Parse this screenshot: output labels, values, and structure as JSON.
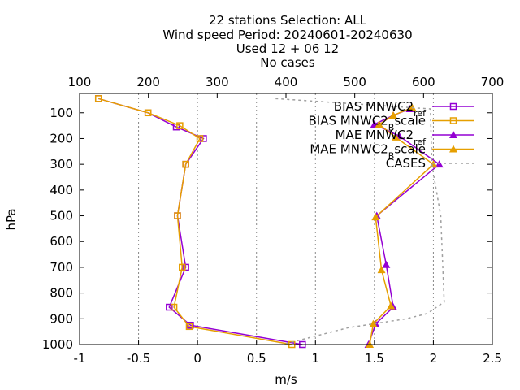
{
  "chart_data": {
    "type": "line",
    "title_lines": [
      "22 stations Selection: ALL",
      "Wind speed  Period: 20240601-20240630",
      "Used 12 + 06 12",
      "No cases"
    ],
    "xlabel": "m/s",
    "ylabel": "hPa",
    "xlim": [
      -1,
      2.5
    ],
    "x_ticks": [
      "-1",
      "-0.5",
      "0",
      "0.5",
      "1",
      "1.5",
      "2",
      "2.5"
    ],
    "x_tick_values": [
      -1,
      -0.5,
      0,
      0.5,
      1,
      1.5,
      2,
      2.5
    ],
    "x2lim": [
      100,
      700
    ],
    "x2_ticks": [
      "100",
      "200",
      "300",
      "400",
      "500",
      "600",
      "700"
    ],
    "x2_tick_values": [
      100,
      200,
      300,
      400,
      500,
      600,
      700
    ],
    "ylim": [
      1000,
      25
    ],
    "y_ticks": [
      "100",
      "200",
      "300",
      "400",
      "500",
      "600",
      "700",
      "800",
      "900",
      "1000"
    ],
    "y_tick_values": [
      100,
      200,
      300,
      400,
      500,
      600,
      700,
      800,
      900,
      1000
    ],
    "grid": "vertical",
    "legend_position": "top-right",
    "series": [
      {
        "name": "BIAS MNWC2_ref",
        "legend_parts": [
          "BIAS MNWC2",
          "ref"
        ],
        "color": "#9400d3",
        "marker": "square",
        "axis": "x1",
        "points": [
          [
            -0.84,
            45
          ],
          [
            -0.42,
            100
          ],
          [
            -0.18,
            155
          ],
          [
            0.05,
            200
          ],
          [
            -0.1,
            300
          ],
          [
            -0.17,
            500
          ],
          [
            -0.1,
            700
          ],
          [
            -0.24,
            855
          ],
          [
            -0.06,
            925
          ],
          [
            0.89,
            1000
          ]
        ]
      },
      {
        "name": "BIAS MNWC2_Bscale",
        "legend_parts": [
          "BIAS MNWC2",
          "B",
          "scale"
        ],
        "color": "#e69f00",
        "marker": "square",
        "axis": "x1",
        "points": [
          [
            -0.84,
            45
          ],
          [
            -0.42,
            100
          ],
          [
            -0.15,
            150
          ],
          [
            0.02,
            200
          ],
          [
            -0.1,
            300
          ],
          [
            -0.17,
            500
          ],
          [
            -0.13,
            700
          ],
          [
            -0.2,
            855
          ],
          [
            -0.07,
            930
          ],
          [
            0.8,
            1000
          ]
        ]
      },
      {
        "name": "MAE MNWC2_ref",
        "legend_parts": [
          "MAE MNWC2",
          "ref"
        ],
        "color": "#9400d3",
        "marker": "triangle",
        "axis": "x1",
        "points": [
          [
            1.8,
            85
          ],
          [
            1.66,
            110
          ],
          [
            1.5,
            145
          ],
          [
            1.71,
            190
          ],
          [
            2.05,
            300
          ],
          [
            1.52,
            500
          ],
          [
            1.6,
            690
          ],
          [
            1.66,
            855
          ],
          [
            1.51,
            920
          ],
          [
            1.45,
            1000
          ]
        ]
      },
      {
        "name": "MAE MNWC2_Bscale",
        "legend_parts": [
          "MAE MNWC2",
          "B",
          "scale"
        ],
        "color": "#e69f00",
        "marker": "triangle",
        "axis": "x1",
        "points": [
          [
            1.82,
            80
          ],
          [
            1.66,
            110
          ],
          [
            1.54,
            145
          ],
          [
            1.68,
            195
          ],
          [
            2.0,
            300
          ],
          [
            1.51,
            505
          ],
          [
            1.56,
            710
          ],
          [
            1.64,
            850
          ],
          [
            1.49,
            920
          ],
          [
            1.46,
            1000
          ]
        ]
      },
      {
        "name": "CASES",
        "legend_parts": [
          "CASES"
        ],
        "color": "#a0a0a0",
        "marker": "none",
        "axis": "x2",
        "dashed": true,
        "points": [
          [
            385,
            45
          ],
          [
            610,
            85
          ],
          [
            612,
            300
          ],
          [
            625,
            500
          ],
          [
            628,
            700
          ],
          [
            630,
            835
          ],
          [
            605,
            880
          ],
          [
            575,
            900
          ],
          [
            490,
            935
          ],
          [
            395,
            1000
          ]
        ]
      }
    ]
  }
}
